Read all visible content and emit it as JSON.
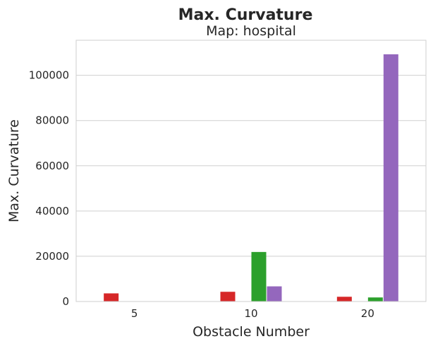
{
  "chart_data": {
    "type": "bar",
    "title": "Max. Curvature",
    "subtitle": "Map: hospital",
    "xlabel": "Obstacle Number",
    "ylabel": "Max. Curvature",
    "categories": [
      "5",
      "10",
      "20"
    ],
    "ylim": [
      0,
      115500
    ],
    "yticks": [
      0,
      20000,
      40000,
      60000,
      80000,
      100000
    ],
    "ytick_labels": [
      "0",
      "20000",
      "40000",
      "60000",
      "80000",
      "100000"
    ],
    "grid": true,
    "series": [
      {
        "color": "#d62728",
        "values": [
          3600,
          4300,
          2100
        ]
      },
      {
        "color": "#1f77b4",
        "values": [
          0,
          0,
          0
        ]
      },
      {
        "color": "#2ca02c",
        "values": [
          0,
          21900,
          1800
        ]
      },
      {
        "color": "#9467bd",
        "values": [
          0,
          6700,
          109300
        ]
      }
    ]
  }
}
